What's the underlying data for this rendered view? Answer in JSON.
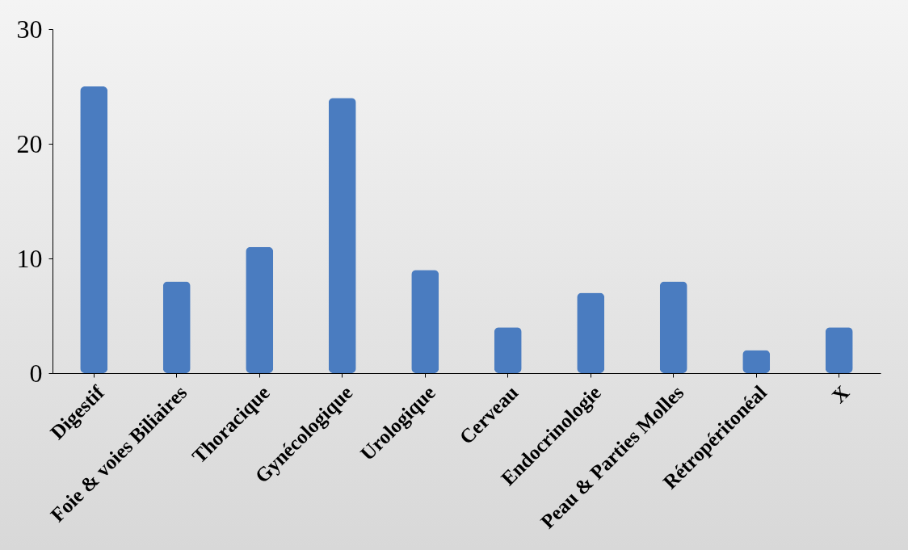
{
  "chart_data": {
    "type": "bar",
    "categories": [
      "Digestif",
      "Foie & voies Biliaires",
      "Thoracique",
      "Gynécologique",
      "Urologique",
      "Cerveau",
      "Endocrinologie",
      "Peau & Parties Molles",
      "Rétropéritonéal",
      "X"
    ],
    "values": [
      25,
      8,
      11,
      24,
      9,
      4,
      7,
      8,
      2,
      4
    ],
    "color": "#4a7cc0",
    "ylim": [
      0,
      30
    ],
    "yticks": [
      0,
      10,
      20,
      30
    ],
    "grid": false
  }
}
